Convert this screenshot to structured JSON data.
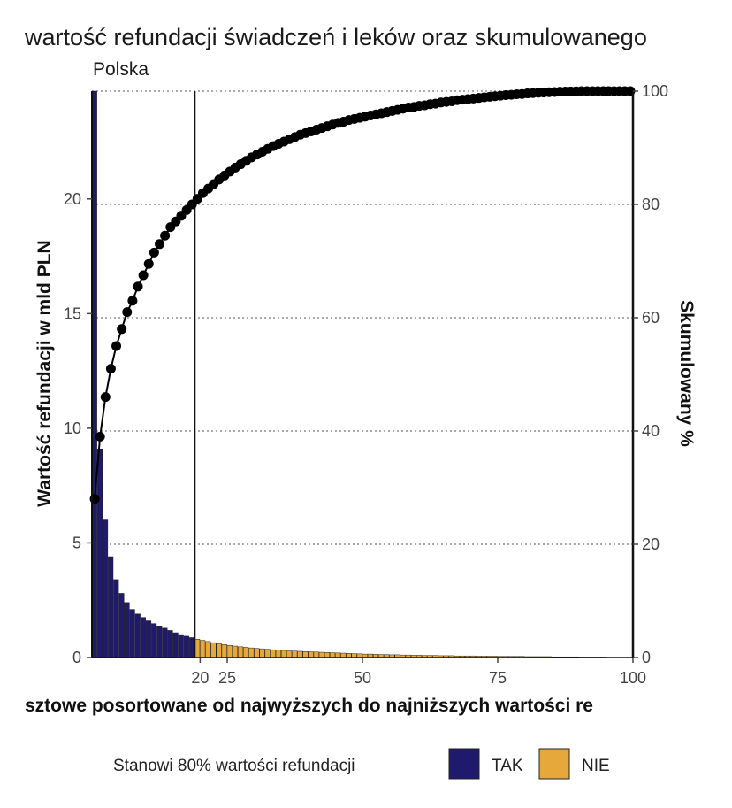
{
  "chart_data": {
    "type": "bar+line",
    "title": "wartość refundacji świadczeń i leków oraz skumulowanego",
    "subtitle": "Polska",
    "xlabel": "sztowe posortowane od najwyższych do najniższych wartości re",
    "ylabel_left": "Wartość refundacji w mld PLN",
    "ylabel_right": "Skumulowany %",
    "xlim": [
      0,
      100
    ],
    "ylim_left": [
      0,
      24.7
    ],
    "ylim_right": [
      0,
      100
    ],
    "x_ticks": [
      20,
      25,
      50,
      75,
      100
    ],
    "y_left_ticks": [
      0,
      5,
      10,
      15,
      20
    ],
    "y_right_ticks": [
      0,
      20,
      40,
      60,
      80,
      100
    ],
    "reference_line_x": 19,
    "grid": "horizontal dotted at right-axis ticks",
    "legend": {
      "position": "bottom",
      "title": "Stanowi 80% wartości refundacji",
      "entries": [
        {
          "label": "TAK",
          "color": "#1f1a6b"
        },
        {
          "label": "NIE",
          "color": "#e6a83a"
        }
      ]
    },
    "bars": {
      "x": [
        1,
        2,
        3,
        4,
        5,
        6,
        7,
        8,
        9,
        10,
        11,
        12,
        13,
        14,
        15,
        16,
        17,
        18,
        19,
        20,
        21,
        22,
        23,
        24,
        25,
        26,
        27,
        28,
        29,
        30,
        31,
        32,
        33,
        34,
        35,
        36,
        37,
        38,
        39,
        40,
        41,
        42,
        43,
        44,
        45,
        46,
        47,
        48,
        49,
        50,
        51,
        52,
        53,
        54,
        55,
        56,
        57,
        58,
        59,
        60,
        61,
        62,
        63,
        64,
        65,
        66,
        67,
        68,
        69,
        70,
        71,
        72,
        73,
        74,
        75,
        76,
        77,
        78,
        79,
        80,
        81,
        82,
        83,
        84,
        85,
        86,
        87,
        88,
        89,
        90,
        91,
        92,
        93,
        94,
        95,
        96,
        97,
        98,
        99,
        100
      ],
      "values": [
        24.7,
        9.1,
        6.0,
        4.4,
        3.4,
        2.8,
        2.4,
        2.1,
        1.9,
        1.75,
        1.6,
        1.48,
        1.38,
        1.28,
        1.18,
        1.08,
        1.0,
        0.93,
        0.87,
        0.8,
        0.75,
        0.7,
        0.65,
        0.61,
        0.57,
        0.53,
        0.5,
        0.47,
        0.45,
        0.42,
        0.4,
        0.38,
        0.36,
        0.34,
        0.32,
        0.31,
        0.29,
        0.28,
        0.27,
        0.26,
        0.25,
        0.24,
        0.23,
        0.22,
        0.21,
        0.2,
        0.19,
        0.18,
        0.17,
        0.16,
        0.15,
        0.15,
        0.14,
        0.13,
        0.13,
        0.12,
        0.12,
        0.11,
        0.11,
        0.1,
        0.1,
        0.09,
        0.09,
        0.09,
        0.08,
        0.08,
        0.08,
        0.07,
        0.07,
        0.07,
        0.07,
        0.06,
        0.06,
        0.06,
        0.06,
        0.05,
        0.05,
        0.05,
        0.05,
        0.05,
        0.04,
        0.04,
        0.04,
        0.04,
        0.04,
        0.03,
        0.03,
        0.03,
        0.03,
        0.03,
        0.02,
        0.02,
        0.02,
        0.02,
        0.02,
        0.01,
        0.01,
        0.01,
        0.01,
        0.01
      ],
      "in_80_percent": "x <= 19 → TAK, x >= 20 → NIE"
    },
    "cumulative_percent": {
      "x": [
        1,
        2,
        3,
        4,
        5,
        6,
        7,
        8,
        9,
        10,
        11,
        12,
        13,
        14,
        15,
        16,
        17,
        18,
        19,
        20,
        21,
        22,
        23,
        24,
        25,
        26,
        27,
        28,
        29,
        30,
        31,
        32,
        33,
        34,
        35,
        36,
        37,
        38,
        39,
        40,
        41,
        42,
        43,
        44,
        45,
        46,
        47,
        48,
        49,
        50,
        51,
        52,
        53,
        54,
        55,
        56,
        57,
        58,
        59,
        60,
        61,
        62,
        63,
        64,
        65,
        66,
        67,
        68,
        69,
        70,
        71,
        72,
        73,
        74,
        75,
        76,
        77,
        78,
        79,
        80,
        81,
        82,
        83,
        84,
        85,
        86,
        87,
        88,
        89,
        90,
        91,
        92,
        93,
        94,
        95,
        96,
        97,
        98,
        99,
        100
      ],
      "values": [
        28,
        39,
        46,
        51,
        55,
        58,
        61,
        63,
        65.5,
        67.5,
        69.5,
        71.5,
        73,
        74.5,
        76,
        77,
        78,
        79,
        80,
        81,
        82,
        82.8,
        83.6,
        84.4,
        85.1,
        85.8,
        86.5,
        87.1,
        87.7,
        88.3,
        88.8,
        89.3,
        89.8,
        90.3,
        90.7,
        91.1,
        91.5,
        91.9,
        92.3,
        92.6,
        92.9,
        93.2,
        93.5,
        93.8,
        94.1,
        94.4,
        94.6,
        94.9,
        95.1,
        95.3,
        95.5,
        95.7,
        95.9,
        96.1,
        96.3,
        96.5,
        96.7,
        96.9,
        97.1,
        97.2,
        97.4,
        97.5,
        97.7,
        97.8,
        98,
        98.1,
        98.2,
        98.4,
        98.5,
        98.6,
        98.7,
        98.8,
        98.9,
        99,
        99.1,
        99.2,
        99.3,
        99.35,
        99.45,
        99.5,
        99.6,
        99.65,
        99.7,
        99.75,
        99.8,
        99.85,
        99.9,
        99.92,
        99.95,
        99.97,
        100,
        100,
        100,
        100,
        100,
        100,
        100,
        100,
        100,
        100
      ]
    }
  },
  "tick_labels": {
    "x": [
      "20",
      "25",
      "50",
      "75",
      "100"
    ],
    "y_left": [
      "0",
      "5",
      "10",
      "15",
      "20"
    ],
    "y_right": [
      "0",
      "20",
      "40",
      "60",
      "80",
      "100"
    ]
  }
}
